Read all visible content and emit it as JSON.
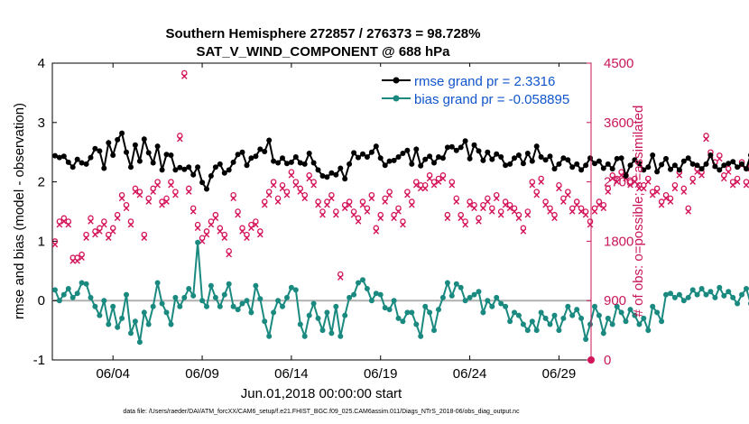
{
  "chart_data": {
    "type": "line",
    "title": "Southern Hemisphere 272857 / 276373 = 98.728%",
    "subtitle": "SAT_V_WIND_COMPONENT @ 688 hPa",
    "ylabel": "rmse and bias (model - observation)",
    "y2label": "# of obs: o=possible; ×=assimilated",
    "xlabel": "Jun.01,2018 00:00:00 start",
    "footnote": "data file: /Users/raeder/DAI/ATM_forcXX/CAM6_setup/f.e21.FHIST_BGC.f09_025.CAM6assim.011/Diags_NTrS_2018-06/obs_diag_output.nc",
    "ylim": [
      -1,
      4
    ],
    "y2lim": [
      0,
      4500
    ],
    "xlim": [
      0.6,
      30.8
    ],
    "yticks": [
      "-1",
      "0",
      "1",
      "2",
      "3",
      "4"
    ],
    "y2ticks": [
      "0",
      "900",
      "1800",
      "2700",
      "3600",
      "4500"
    ],
    "xticks": [
      {
        "x": 4,
        "label": "06/04"
      },
      {
        "x": 9,
        "label": "06/09"
      },
      {
        "x": 14,
        "label": "06/14"
      },
      {
        "x": 19,
        "label": "06/19"
      },
      {
        "x": 24,
        "label": "06/24"
      },
      {
        "x": 29,
        "label": "06/29"
      }
    ],
    "zero_line": 0,
    "legend_position": "top-right",
    "colors": {
      "rmse": "#000000",
      "bias": "#1a8a80",
      "obs": "#d4145a",
      "zero": "#b0b0b0",
      "right_axis": "#c8175a",
      "legend_text": "#1155cc"
    },
    "series": [
      {
        "name": "rmse grand pr = 2.3316",
        "color": "#000000",
        "x_start": 0.75,
        "x_step": 0.25,
        "values": [
          2.44,
          2.41,
          2.43,
          2.33,
          2.25,
          2.38,
          2.32,
          2.3,
          2.41,
          2.56,
          2.52,
          2.23,
          2.66,
          2.45,
          2.71,
          2.82,
          2.5,
          2.25,
          2.62,
          2.35,
          2.72,
          2.49,
          2.32,
          2.6,
          2.2,
          2.46,
          2.45,
          2.2,
          2.24,
          2.21,
          2.25,
          2.12,
          2.25,
          1.99,
          1.88,
          2.1,
          2.25,
          2.3,
          2.15,
          2.2,
          2.33,
          2.46,
          2.5,
          2.28,
          2.4,
          2.43,
          2.55,
          2.51,
          2.7,
          2.35,
          2.32,
          2.4,
          2.31,
          2.33,
          2.42,
          2.32,
          2.3,
          2.48,
          2.32,
          2.2,
          2.1,
          2.08,
          2.15,
          2.12,
          2.23,
          2.05,
          2.3,
          2.49,
          2.41,
          2.47,
          2.42,
          2.5,
          2.6,
          2.4,
          2.28,
          2.35,
          2.36,
          2.42,
          2.48,
          2.53,
          2.3,
          2.55,
          2.27,
          2.38,
          2.43,
          2.32,
          2.42,
          2.4,
          2.58,
          2.59,
          2.53,
          2.58,
          2.69,
          2.39,
          2.62,
          2.52,
          2.36,
          2.5,
          2.38,
          2.47,
          2.42,
          2.28,
          2.3,
          2.4,
          2.45,
          2.31,
          2.48,
          2.35,
          2.6,
          2.42,
          2.37,
          2.43,
          2.22,
          2.3,
          2.4,
          2.37,
          2.25,
          2.3,
          2.2,
          2.28,
          2.4,
          2.31,
          2.35,
          2.23,
          2.3,
          2.22,
          2.39,
          2.4,
          2.1,
          2.28,
          2.37,
          2.31,
          2.2,
          2.25,
          2.45,
          2.17,
          2.29,
          2.39,
          2.21,
          2.28,
          2.2,
          2.35,
          2.4,
          2.3,
          2.28,
          2.22,
          2.3,
          2.45,
          2.26,
          2.2,
          2.28,
          2.31,
          2.34,
          2.25,
          2.3,
          2.22,
          2.45,
          2.3,
          2.25,
          2.41,
          2.29,
          2.3,
          2.38,
          2.35,
          2.3,
          2.21,
          2.28,
          2.15,
          1.99,
          2.4,
          2.33,
          2.46,
          2.3,
          2.33,
          2.4,
          2.2,
          2.33,
          2.45,
          2.24,
          2.3,
          2.3,
          2.36,
          2.25,
          2.2,
          2.33,
          2.38,
          2.31,
          2.35,
          2.42,
          2.3,
          2.28,
          2.25,
          2.3,
          2.45,
          2.32,
          2.28,
          2.38,
          2.3,
          2.26,
          2.31,
          2.2,
          2.3,
          2.33,
          2.25,
          2.32,
          2.29,
          2.3,
          2.28
        ]
      },
      {
        "name": "bias grand pr = -0.058895",
        "color": "#1a8a80",
        "x_start": 0.75,
        "x_step": 0.25,
        "values": [
          0.18,
          0.0,
          0.1,
          0.2,
          0.05,
          0.12,
          0.3,
          0.28,
          0.05,
          -0.1,
          -0.25,
          0.0,
          -0.4,
          -0.1,
          -0.45,
          -0.3,
          0.1,
          -0.55,
          -0.35,
          -0.7,
          -0.2,
          -0.4,
          -0.1,
          0.3,
          -0.05,
          -0.2,
          -0.4,
          0.05,
          -0.1,
          0.05,
          0.2,
          0.08,
          0.98,
          0.0,
          -0.1,
          0.25,
          0.05,
          -0.1,
          0.1,
          0.28,
          -0.1,
          -0.15,
          -0.05,
          0.0,
          -0.2,
          0.25,
          0.03,
          -0.35,
          -0.6,
          -0.2,
          0.0,
          -0.1,
          0.05,
          0.22,
          0.18,
          -0.4,
          -0.6,
          -0.25,
          -0.05,
          -0.3,
          -0.5,
          -0.2,
          -0.55,
          -0.1,
          -0.6,
          -0.25,
          0.05,
          0.1,
          0.3,
          0.35,
          0.2,
          0.0,
          0.12,
          0.1,
          -0.12,
          -0.15,
          0.0,
          -0.3,
          -0.35,
          -0.2,
          -0.2,
          -0.4,
          -0.6,
          -0.1,
          -0.2,
          -0.5,
          -0.15,
          0.05,
          0.3,
          0.08,
          0.28,
          0.22,
          0.0,
          0.05,
          0.1,
          0.15,
          -0.2,
          0.0,
          -0.1,
          0.05,
          -0.05,
          -0.1,
          -0.35,
          -0.2,
          -0.25,
          -0.4,
          -0.5,
          -0.35,
          -0.5,
          -0.2,
          -0.3,
          -0.4,
          -0.25,
          -0.5,
          -0.3,
          -0.1,
          -0.25,
          -0.15,
          -0.3,
          -0.65,
          -0.4,
          -0.1,
          -0.25,
          -0.55,
          -0.3,
          -0.4,
          -0.1,
          -0.2,
          -0.35,
          -0.15,
          -0.25,
          -0.4,
          -0.3,
          -0.5,
          -0.1,
          -0.2,
          -0.35,
          0.1,
          0.12,
          0.05,
          0.1,
          0.0,
          0.05,
          0.18,
          0.1,
          0.2,
          0.1,
          0.15,
          0.05,
          0.22,
          0.08,
          0.15,
          0.05,
          -0.05,
          0.1,
          0.2,
          -0.05,
          0.05,
          0.0,
          -0.1,
          0.05,
          -0.2,
          -0.1,
          0.1,
          -0.3,
          0.0,
          -0.05,
          -0.15,
          -0.1,
          0.1,
          -0.25,
          0.1,
          -0.35,
          0.15,
          -0.2,
          0.0,
          0.1,
          -0.1,
          0.2,
          0.25,
          0.1,
          0.0,
          0.18,
          0.35,
          0.3,
          0.42,
          0.4,
          0.25,
          0.2,
          0.33,
          0.2,
          0.1,
          0.05,
          -0.1,
          -0.05,
          -0.15,
          -0.12,
          -0.1
        ]
      },
      {
        "name": "# of obs possible",
        "color": "#d4145a",
        "marker": "o",
        "x_start": 0.75,
        "x_step": 0.25,
        "values": [
          1800,
          2100,
          2150,
          2100,
          1550,
          1550,
          1600,
          1900,
          2150,
          1950,
          2000,
          2100,
          1900,
          2000,
          2200,
          2500,
          2350,
          2100,
          2600,
          2550,
          1900,
          2450,
          2600,
          2700,
          2400,
          2450,
          2700,
          2550,
          3400,
          4350,
          2600,
          2300,
          2050,
          1850,
          1950,
          2100,
          2200,
          2000,
          1900,
          1650,
          2500,
          2250,
          2000,
          1900,
          2050,
          2100,
          1950,
          2400,
          2550,
          2700,
          2450,
          2650,
          2550,
          2850,
          2700,
          2600,
          2500,
          2800,
          2700,
          2400,
          2250,
          2400,
          2500,
          2250,
          1300,
          2350,
          2400,
          2250,
          2150,
          2400,
          2300,
          2500,
          2000,
          2200,
          2450,
          2550,
          2200,
          2300,
          2100,
          2550,
          2400,
          2700,
          2650,
          2650,
          2800,
          2700,
          2750,
          2800,
          2200,
          2700,
          2450,
          2200,
          2100,
          2400,
          2350,
          2150,
          2350,
          2450,
          2300,
          2500,
          2250,
          2400,
          2350,
          2300,
          2200,
          2000,
          2250,
          2700,
          2550,
          2750,
          2400,
          2300,
          2200,
          2650,
          2450,
          2550,
          2300,
          2400,
          2300,
          2250,
          2100,
          2300,
          2400,
          2350,
          2600,
          2800,
          2750,
          2850,
          2800,
          2700,
          2750,
          2650,
          2650,
          2750,
          2550,
          2600,
          2400,
          2500,
          2450,
          2650,
          2850,
          2600,
          2300,
          2750,
          2900,
          2850,
          3400,
          3150,
          3000,
          3100,
          2800,
          2900,
          2700,
          2750,
          3000,
          2700,
          2950,
          2850,
          2750,
          2550,
          2650,
          2800,
          2550,
          2400,
          2700,
          2600,
          3000,
          2750,
          1850
        ]
      },
      {
        "name": "# of obs assimilated",
        "color": "#d4145a",
        "marker": "x",
        "x_start": 0.75,
        "x_step": 0.25,
        "values": [
          1750,
          2050,
          2100,
          2050,
          1500,
          1500,
          1550,
          1850,
          2100,
          1900,
          1950,
          2050,
          1850,
          1950,
          2150,
          2450,
          2300,
          2050,
          2550,
          2500,
          1850,
          2400,
          2550,
          2650,
          2350,
          2400,
          2650,
          2500,
          3350,
          4300,
          2550,
          2250,
          2000,
          1800,
          1900,
          2050,
          2150,
          1950,
          1850,
          1600,
          2450,
          2200,
          1950,
          1850,
          2000,
          2050,
          1900,
          2350,
          2500,
          2650,
          2400,
          2600,
          2500,
          2800,
          2650,
          2550,
          2450,
          2750,
          2650,
          2350,
          2200,
          2350,
          2450,
          2200,
          1250,
          2300,
          2350,
          2200,
          2100,
          2350,
          2250,
          2450,
          1950,
          2150,
          2400,
          2500,
          2150,
          2250,
          2050,
          2500,
          2350,
          2650,
          2600,
          2600,
          2750,
          2650,
          2700,
          2750,
          2150,
          2650,
          2400,
          2150,
          2050,
          2350,
          2300,
          2100,
          2300,
          2400,
          2250,
          2450,
          2200,
          2350,
          2300,
          2250,
          2150,
          1950,
          2200,
          2650,
          2500,
          2700,
          2350,
          2250,
          2150,
          2600,
          2400,
          2500,
          2250,
          2350,
          2250,
          2200,
          2050,
          2250,
          2350,
          2300,
          2550,
          2750,
          2700,
          2800,
          2750,
          2650,
          2700,
          2600,
          2600,
          2700,
          2500,
          2550,
          2350,
          2450,
          2400,
          2600,
          2800,
          2550,
          2250,
          2700,
          2850,
          2800,
          3350,
          3100,
          2950,
          3050,
          2750,
          2850,
          2650,
          2700,
          2950,
          2650,
          2900,
          2800,
          2700,
          2500,
          2600,
          2750,
          2500,
          2350,
          2650,
          2550,
          2950,
          2700,
          1800
        ]
      }
    ]
  }
}
